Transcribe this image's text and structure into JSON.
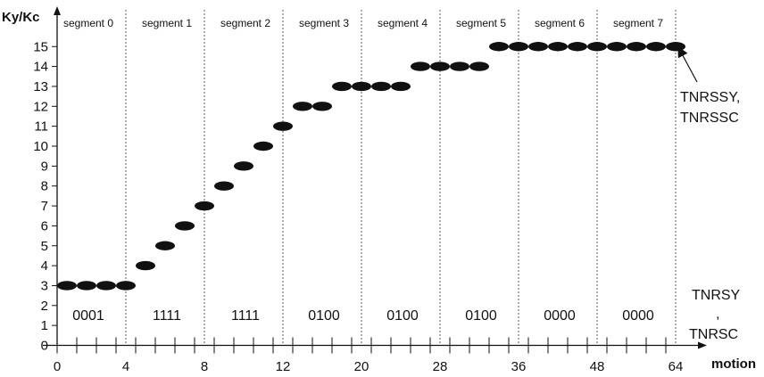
{
  "chart_data": {
    "type": "scatter",
    "ylabel": "Ky/Kc",
    "xlabel": "motion",
    "ylim": [
      0,
      15
    ],
    "y_ticks": [
      "0",
      "1",
      "2",
      "3",
      "4",
      "5",
      "6",
      "7",
      "8",
      "9",
      "10",
      "11",
      "12",
      "13",
      "14",
      "15"
    ],
    "x_tick_labels": [
      "0",
      "4",
      "8",
      "12",
      "20",
      "28",
      "36",
      "48",
      "64"
    ],
    "grid": false,
    "segments": [
      {
        "name": "segment 0",
        "code": "0001"
      },
      {
        "name": "segment 1",
        "code": "1111"
      },
      {
        "name": "segment 2",
        "code": "1111"
      },
      {
        "name": "segment 3",
        "code": "0100"
      },
      {
        "name": "segment 4",
        "code": "0100"
      },
      {
        "name": "segment 5",
        "code": "0100"
      },
      {
        "name": "segment 6",
        "code": "0000"
      },
      {
        "name": "segment 7",
        "code": "0000"
      }
    ],
    "points": [
      {
        "step": 0,
        "y": 3
      },
      {
        "step": 1,
        "y": 3
      },
      {
        "step": 2,
        "y": 3
      },
      {
        "step": 3,
        "y": 3
      },
      {
        "step": 4,
        "y": 4
      },
      {
        "step": 5,
        "y": 5
      },
      {
        "step": 6,
        "y": 6
      },
      {
        "step": 7,
        "y": 7
      },
      {
        "step": 8,
        "y": 8
      },
      {
        "step": 9,
        "y": 9
      },
      {
        "step": 10,
        "y": 10
      },
      {
        "step": 11,
        "y": 11
      },
      {
        "step": 12,
        "y": 12
      },
      {
        "step": 13,
        "y": 12
      },
      {
        "step": 14,
        "y": 13
      },
      {
        "step": 15,
        "y": 13
      },
      {
        "step": 16,
        "y": 13
      },
      {
        "step": 17,
        "y": 13
      },
      {
        "step": 18,
        "y": 14
      },
      {
        "step": 19,
        "y": 14
      },
      {
        "step": 20,
        "y": 14
      },
      {
        "step": 21,
        "y": 14
      },
      {
        "step": 22,
        "y": 15
      },
      {
        "step": 23,
        "y": 15
      },
      {
        "step": 24,
        "y": 15
      },
      {
        "step": 25,
        "y": 15
      },
      {
        "step": 26,
        "y": 15
      },
      {
        "step": 27,
        "y": 15
      },
      {
        "step": 28,
        "y": 15
      },
      {
        "step": 29,
        "y": 15
      },
      {
        "step": 30,
        "y": 15
      },
      {
        "step": 31,
        "y": 15
      }
    ],
    "annotations": {
      "top_right": [
        "TNRSSY,",
        "TNRSSC"
      ],
      "bottom_right": [
        "TNRSY",
        ",",
        "TNRSC"
      ]
    }
  }
}
